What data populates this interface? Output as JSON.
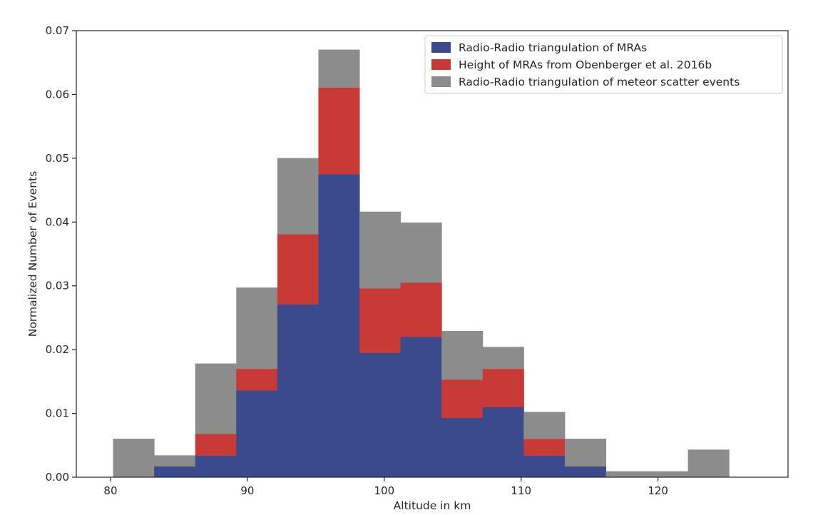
{
  "chart_data": {
    "type": "bar",
    "stacked": true,
    "xlabel": "Altitude in km",
    "ylabel": "Normalized Number of Events",
    "xlim": [
      77.5,
      129.5
    ],
    "ylim": [
      0,
      0.07
    ],
    "x_ticks": [
      80,
      90,
      100,
      110,
      120
    ],
    "x_tick_labels": [
      "80",
      "90",
      "100",
      "110",
      "120"
    ],
    "y_ticks": [
      0,
      0.01,
      0.02,
      0.03,
      0.04,
      0.05,
      0.06,
      0.07
    ],
    "y_tick_labels": [
      "0.00",
      "0.01",
      "0.02",
      "0.03",
      "0.04",
      "0.05",
      "0.06",
      "0.07"
    ],
    "grid": false,
    "legend_position": "top-right",
    "bin_edges": [
      80.2,
      83.2,
      86.2,
      89.2,
      92.2,
      95.2,
      98.2,
      101.2,
      104.2,
      107.2,
      110.2,
      113.2,
      116.2,
      119.2,
      122.2,
      125.2
    ],
    "series": [
      {
        "name": "Radio-Radio triangulation of MRAs",
        "color": "#3a4a8c",
        "values": [
          0,
          0.0017,
          0.0034,
          0.0136,
          0.0271,
          0.0475,
          0.0195,
          0.022,
          0.0093,
          0.011,
          0.0034,
          0.0017,
          0,
          0,
          0
        ]
      },
      {
        "name": "Height of MRAs from Obenberger et al. 2016b",
        "color": "#c83a36",
        "values": [
          0,
          0,
          0.0034,
          0.0034,
          0.011,
          0.0136,
          0.0101,
          0.0085,
          0.006,
          0.006,
          0.0026,
          0,
          0,
          0,
          0
        ]
      },
      {
        "name": "Radio-Radio triangulation of meteor scatter events",
        "color": "#8c8c8c",
        "values": [
          0.006,
          0.0017,
          0.011,
          0.0127,
          0.0119,
          0.0059,
          0.012,
          0.0094,
          0.0076,
          0.0034,
          0.0042,
          0.0043,
          0.0009,
          0.0009,
          0.0043
        ]
      }
    ]
  }
}
